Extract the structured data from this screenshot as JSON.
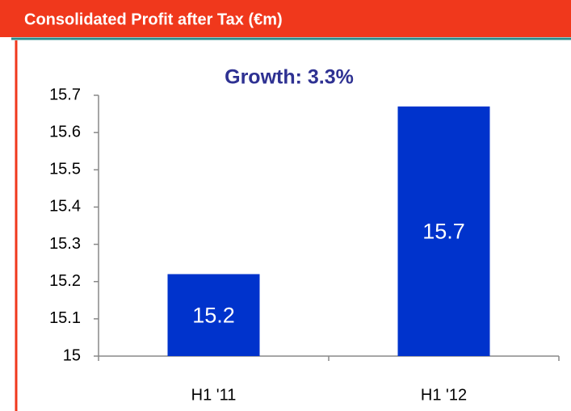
{
  "chart_data": {
    "type": "bar",
    "title": "Consolidated Profit after Tax (€m)",
    "subtitle": "Growth: 3.3%",
    "categories": [
      "H1 '11",
      "H1 '12"
    ],
    "values": [
      15.22,
      15.67
    ],
    "value_labels": [
      "15.2",
      "15.7"
    ],
    "color": "#0033cc",
    "ylim": [
      15,
      15.7
    ],
    "yticks": [
      15,
      15.1,
      15.2,
      15.3,
      15.4,
      15.5,
      15.6,
      15.7
    ],
    "grid": false
  }
}
